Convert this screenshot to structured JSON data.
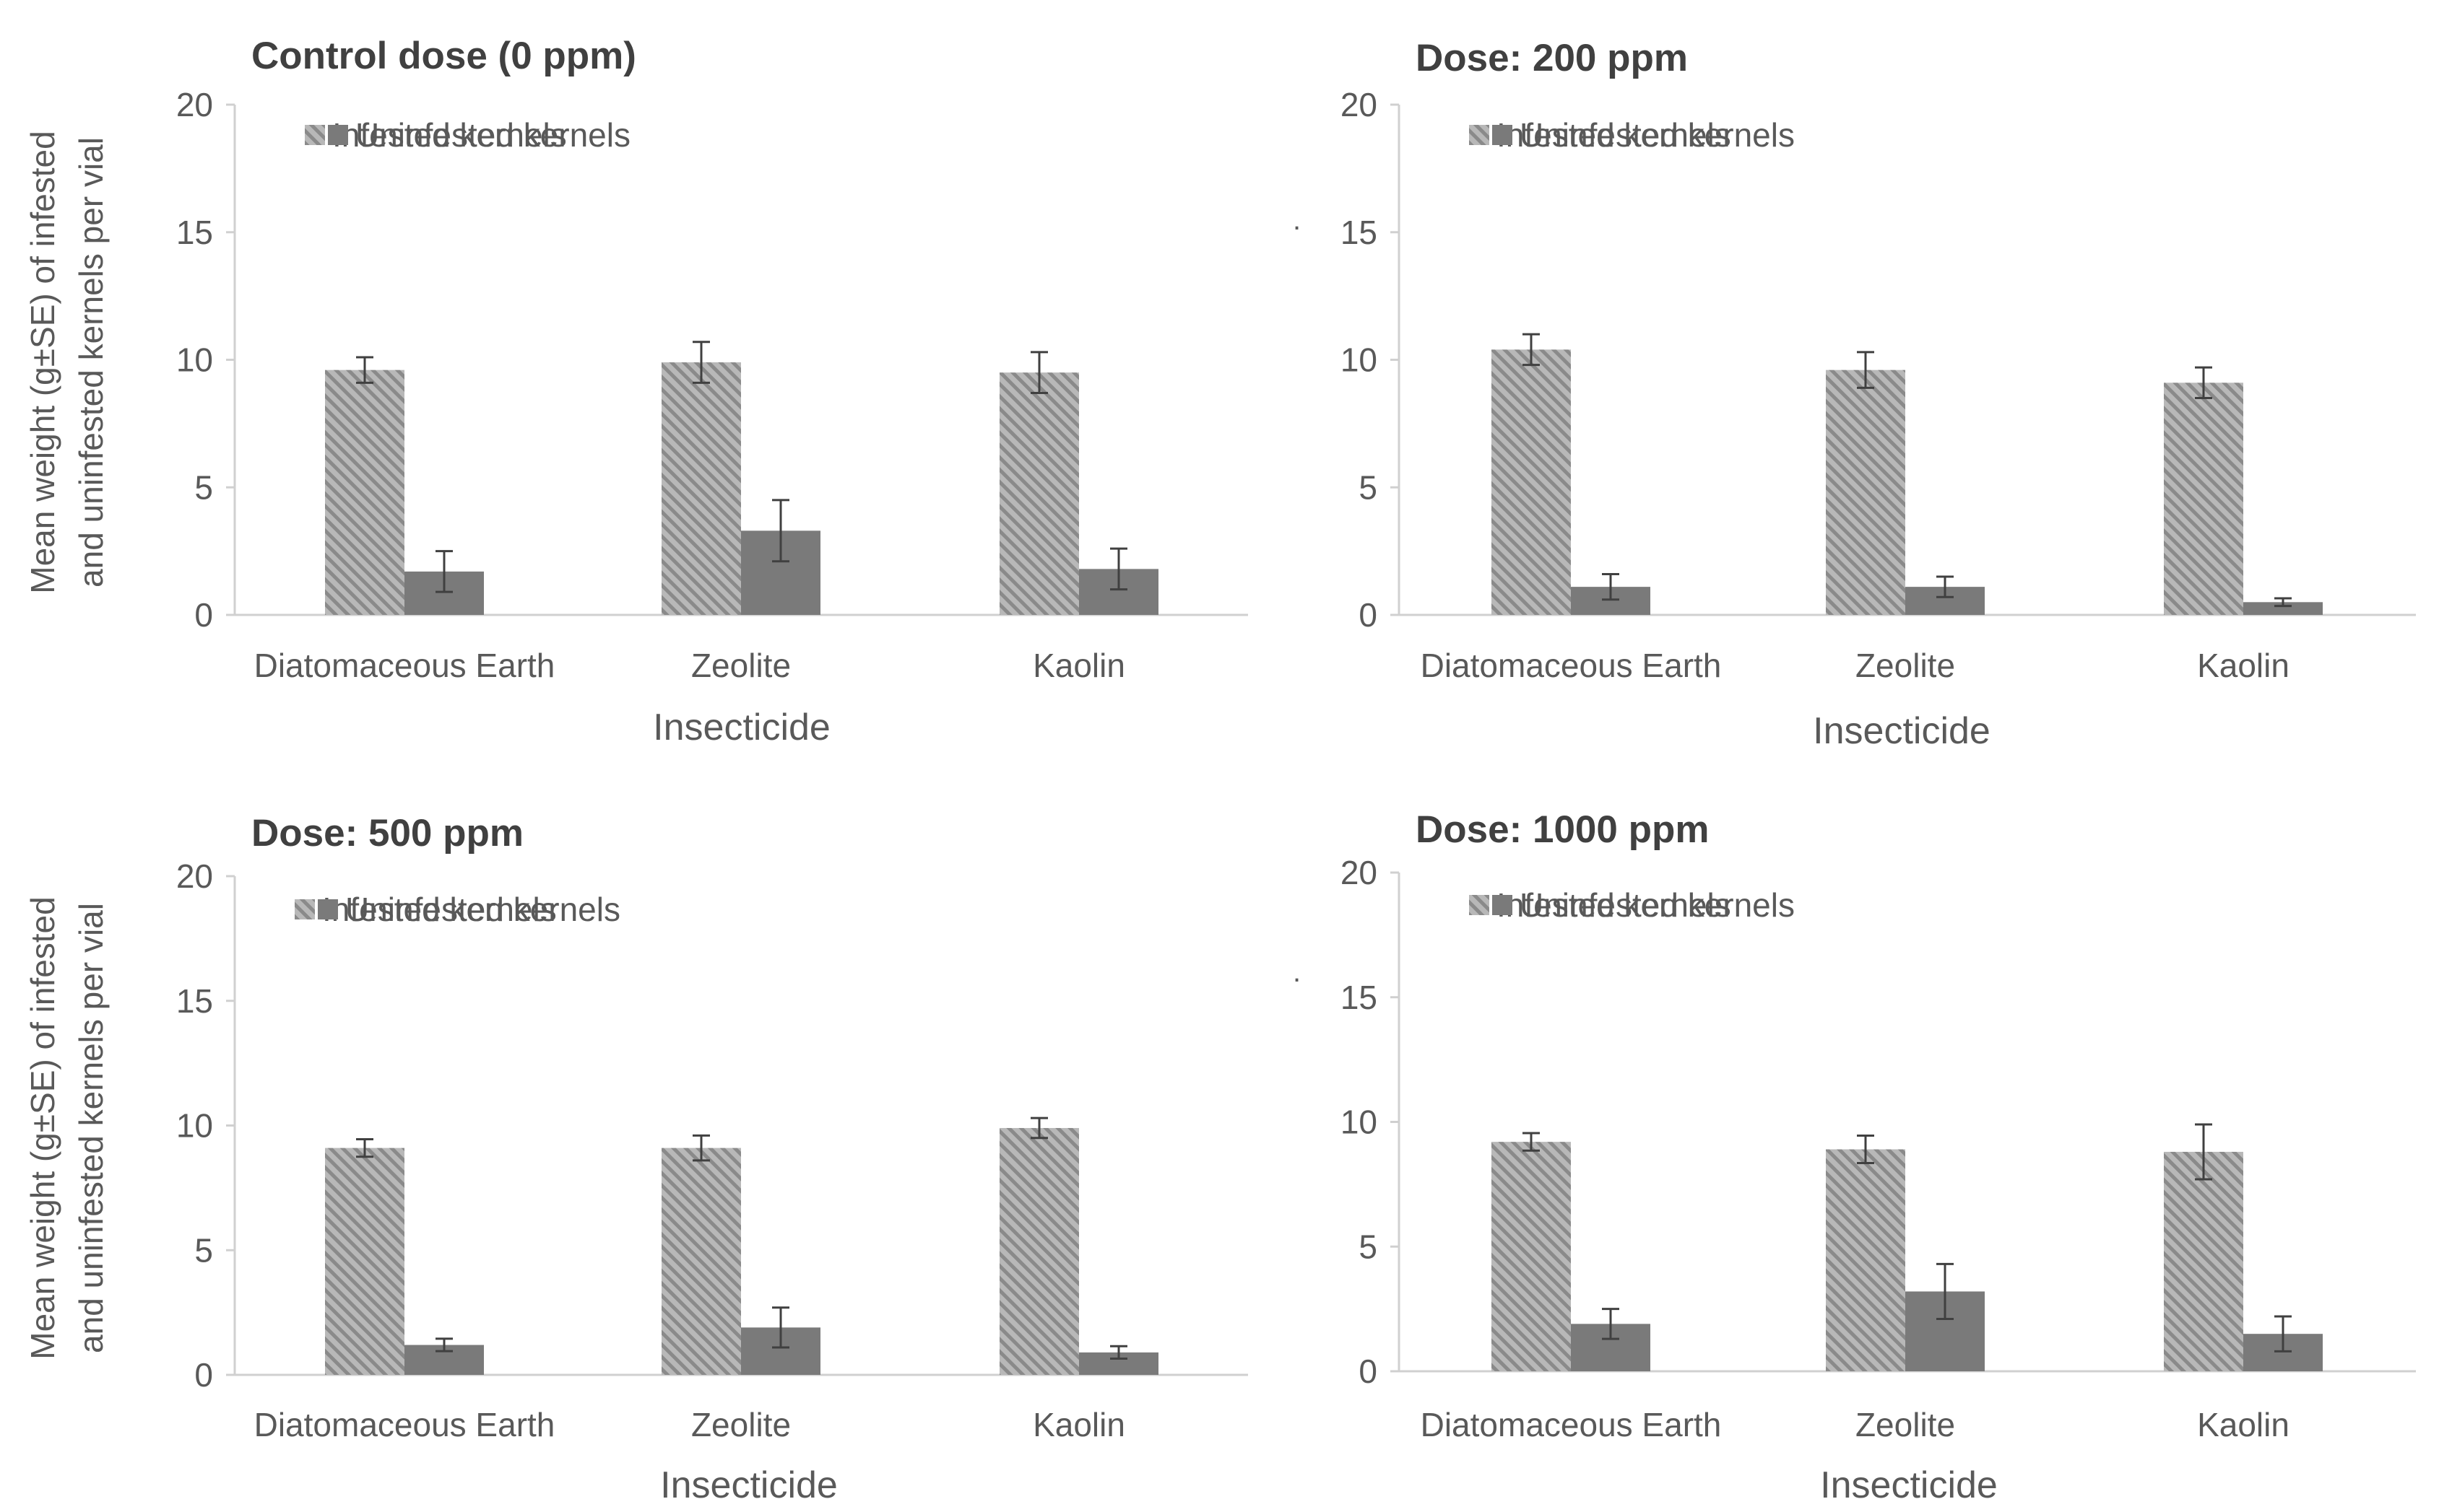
{
  "figure": {
    "stray_marks": [
      ".",
      "."
    ]
  },
  "colors": {
    "infested_fill": "#b8b8b8",
    "infested_stripe": "#8a8a8a",
    "uninfested_fill": "#7a7a7a",
    "axis": "#d0d0d0",
    "text": "#595959",
    "title": "#404040",
    "errorbar": "#404040"
  },
  "chart_data": [
    {
      "type": "bar",
      "title": "Control dose (0 ppm)",
      "xlabel": "Insecticide",
      "ylabel_lines": [
        "Mean weight  (g±SE) of infested",
        "and uninfested kernels per vial"
      ],
      "categories": [
        "Diatomaceous Earth",
        "Zeolite",
        "Kaolin"
      ],
      "ylim": [
        0,
        20
      ],
      "yticks": [
        0,
        5,
        10,
        15,
        20
      ],
      "legend": [
        "Infested kernels",
        "Uninfested kernels"
      ],
      "series": [
        {
          "name": "Infested kernels",
          "values": [
            9.6,
            9.9,
            9.5
          ],
          "errors": [
            0.5,
            0.8,
            0.8
          ]
        },
        {
          "name": "Uninfested kernels",
          "values": [
            1.7,
            3.3,
            1.8
          ],
          "errors": [
            0.8,
            1.2,
            0.8
          ]
        }
      ]
    },
    {
      "type": "bar",
      "title": "Dose: 200 ppm",
      "xlabel": "Insecticide",
      "ylabel_lines": [],
      "categories": [
        "Diatomaceous Earth",
        "Zeolite",
        "Kaolin"
      ],
      "ylim": [
        0,
        20
      ],
      "yticks": [
        0,
        5,
        10,
        15,
        20
      ],
      "legend": [
        "Infested kernels",
        "Uninfested kernels"
      ],
      "series": [
        {
          "name": "Infested kernels",
          "values": [
            10.4,
            9.6,
            9.1
          ],
          "errors": [
            0.6,
            0.7,
            0.6
          ]
        },
        {
          "name": "Uninfested kernels",
          "values": [
            1.1,
            1.1,
            0.5
          ],
          "errors": [
            0.5,
            0.4,
            0.15
          ]
        }
      ]
    },
    {
      "type": "bar",
      "title": "Dose: 500 ppm",
      "xlabel": "Insecticide",
      "ylabel_lines": [
        "Mean weight (g±SE) of infested",
        "and uninfested kernels  per vial"
      ],
      "categories": [
        "Diatomaceous Earth",
        "Zeolite",
        "Kaolin"
      ],
      "ylim": [
        0,
        20
      ],
      "yticks": [
        0,
        5,
        10,
        15,
        20
      ],
      "legend": [
        "Infested kernels",
        "Uninfested kernels"
      ],
      "series": [
        {
          "name": "Infested kernels",
          "values": [
            9.1,
            9.1,
            9.9
          ],
          "errors": [
            0.35,
            0.5,
            0.4
          ]
        },
        {
          "name": "Uninfested kernels",
          "values": [
            1.2,
            1.9,
            0.9
          ],
          "errors": [
            0.25,
            0.8,
            0.25
          ]
        }
      ]
    },
    {
      "type": "bar",
      "title": "Dose: 1000 ppm",
      "xlabel": "Insecticide",
      "ylabel_lines": [],
      "categories": [
        "Diatomaceous Earth",
        "Zeolite",
        "Kaolin"
      ],
      "ylim": [
        0,
        20
      ],
      "yticks": [
        0,
        5,
        10,
        15,
        20
      ],
      "legend": [
        "Infested kernels",
        "Uninfested kernels"
      ],
      "series": [
        {
          "name": "Infested kernels",
          "values": [
            9.2,
            8.9,
            8.8
          ],
          "errors": [
            0.35,
            0.55,
            1.1
          ]
        },
        {
          "name": "Uninfested kernels",
          "values": [
            1.9,
            3.2,
            1.5
          ],
          "errors": [
            0.6,
            1.1,
            0.7
          ]
        }
      ]
    }
  ]
}
